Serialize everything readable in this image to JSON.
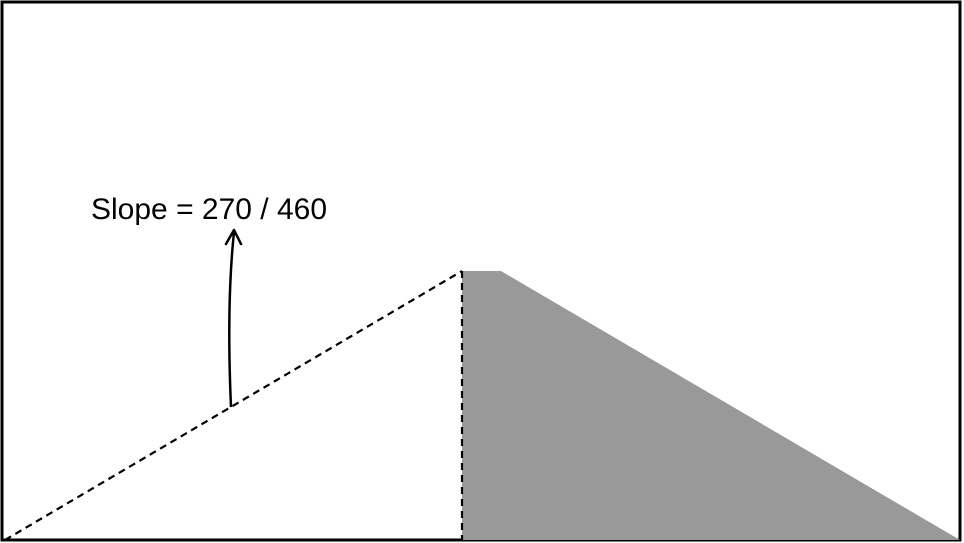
{
  "diagram": {
    "slope_label": "Slope = 270 / 460",
    "colors": {
      "background": "#ffffff",
      "outline": "#000000",
      "shaded_region": "#999999",
      "dashed_lines": "#000000"
    },
    "icons": {
      "annotation_arrow": "curved-up-arrow-icon"
    }
  }
}
